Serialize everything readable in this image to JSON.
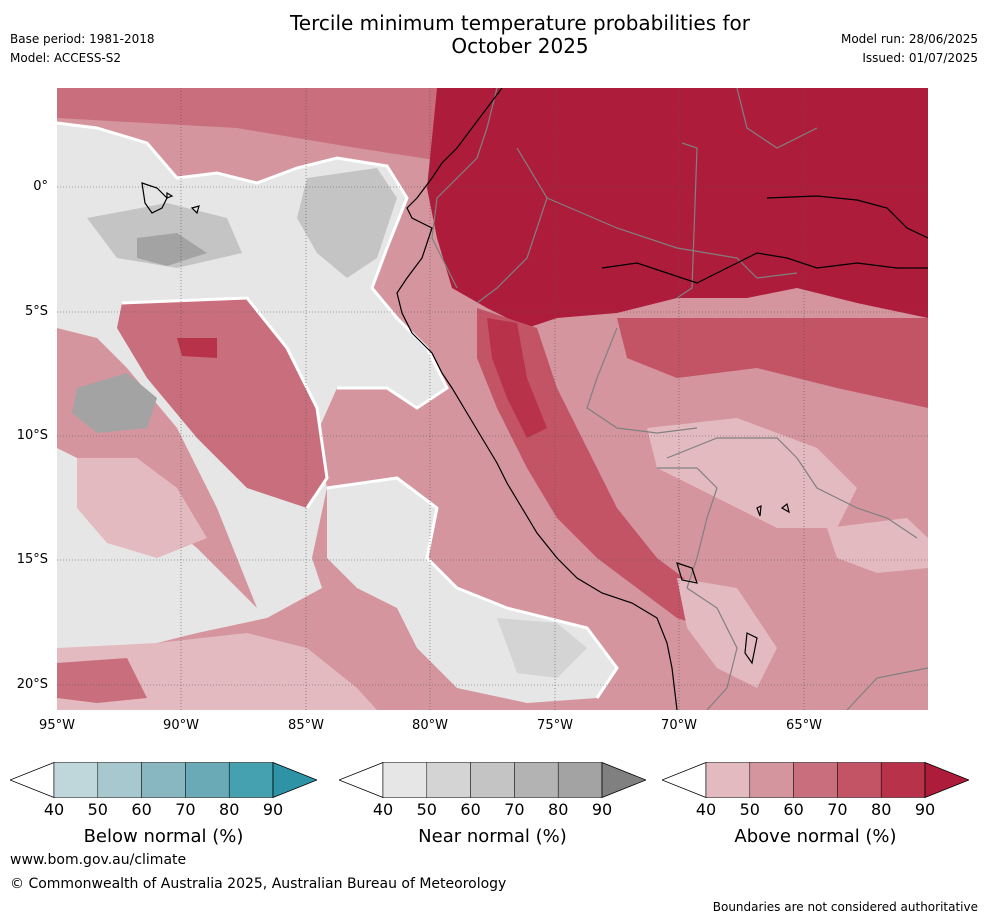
{
  "title_line1": "Tercile minimum temperature probabilities for",
  "title_line2": "October 2025",
  "meta": {
    "base_period": "Base period: 1981-2018",
    "model": "Model: ACCESS-S2",
    "model_run": "Model run: 28/06/2025",
    "issued": "Issued: 01/07/2025"
  },
  "axes": {
    "lat_labels": [
      "0°",
      "5°S",
      "10°S",
      "15°S",
      "20°S"
    ],
    "lon_labels": [
      "95°W",
      "90°W",
      "85°W",
      "80°W",
      "75°W",
      "70°W",
      "65°W"
    ]
  },
  "legends": [
    {
      "title": "Below normal (%)",
      "ticks": [
        "40",
        "50",
        "60",
        "70",
        "80",
        "90"
      ],
      "colors": [
        "#ffffff",
        "#bfd6db",
        "#a6c8ce",
        "#89b7c1",
        "#6aaab6",
        "#45a0b0",
        "#2f93a6"
      ]
    },
    {
      "title": "Near normal (%)",
      "ticks": [
        "40",
        "50",
        "60",
        "70",
        "80",
        "90"
      ],
      "colors": [
        "#ffffff",
        "#e6e6e6",
        "#d4d4d4",
        "#c4c4c4",
        "#b3b3b3",
        "#a3a3a3",
        "#808080"
      ]
    },
    {
      "title": "Above normal (%)",
      "ticks": [
        "40",
        "50",
        "60",
        "70",
        "80",
        "90"
      ],
      "colors": [
        "#ffffff",
        "#e3bac0",
        "#d4959e",
        "#c96e7c",
        "#c25466",
        "#b8324a",
        "#ae1c3c"
      ]
    }
  ],
  "footer": {
    "url": "www.bom.gov.au/climate",
    "copyright": "© Commonwealth of Australia 2025, Australian Bureau of Meteorology",
    "note": "Boundaries are not considered authoritative"
  }
}
